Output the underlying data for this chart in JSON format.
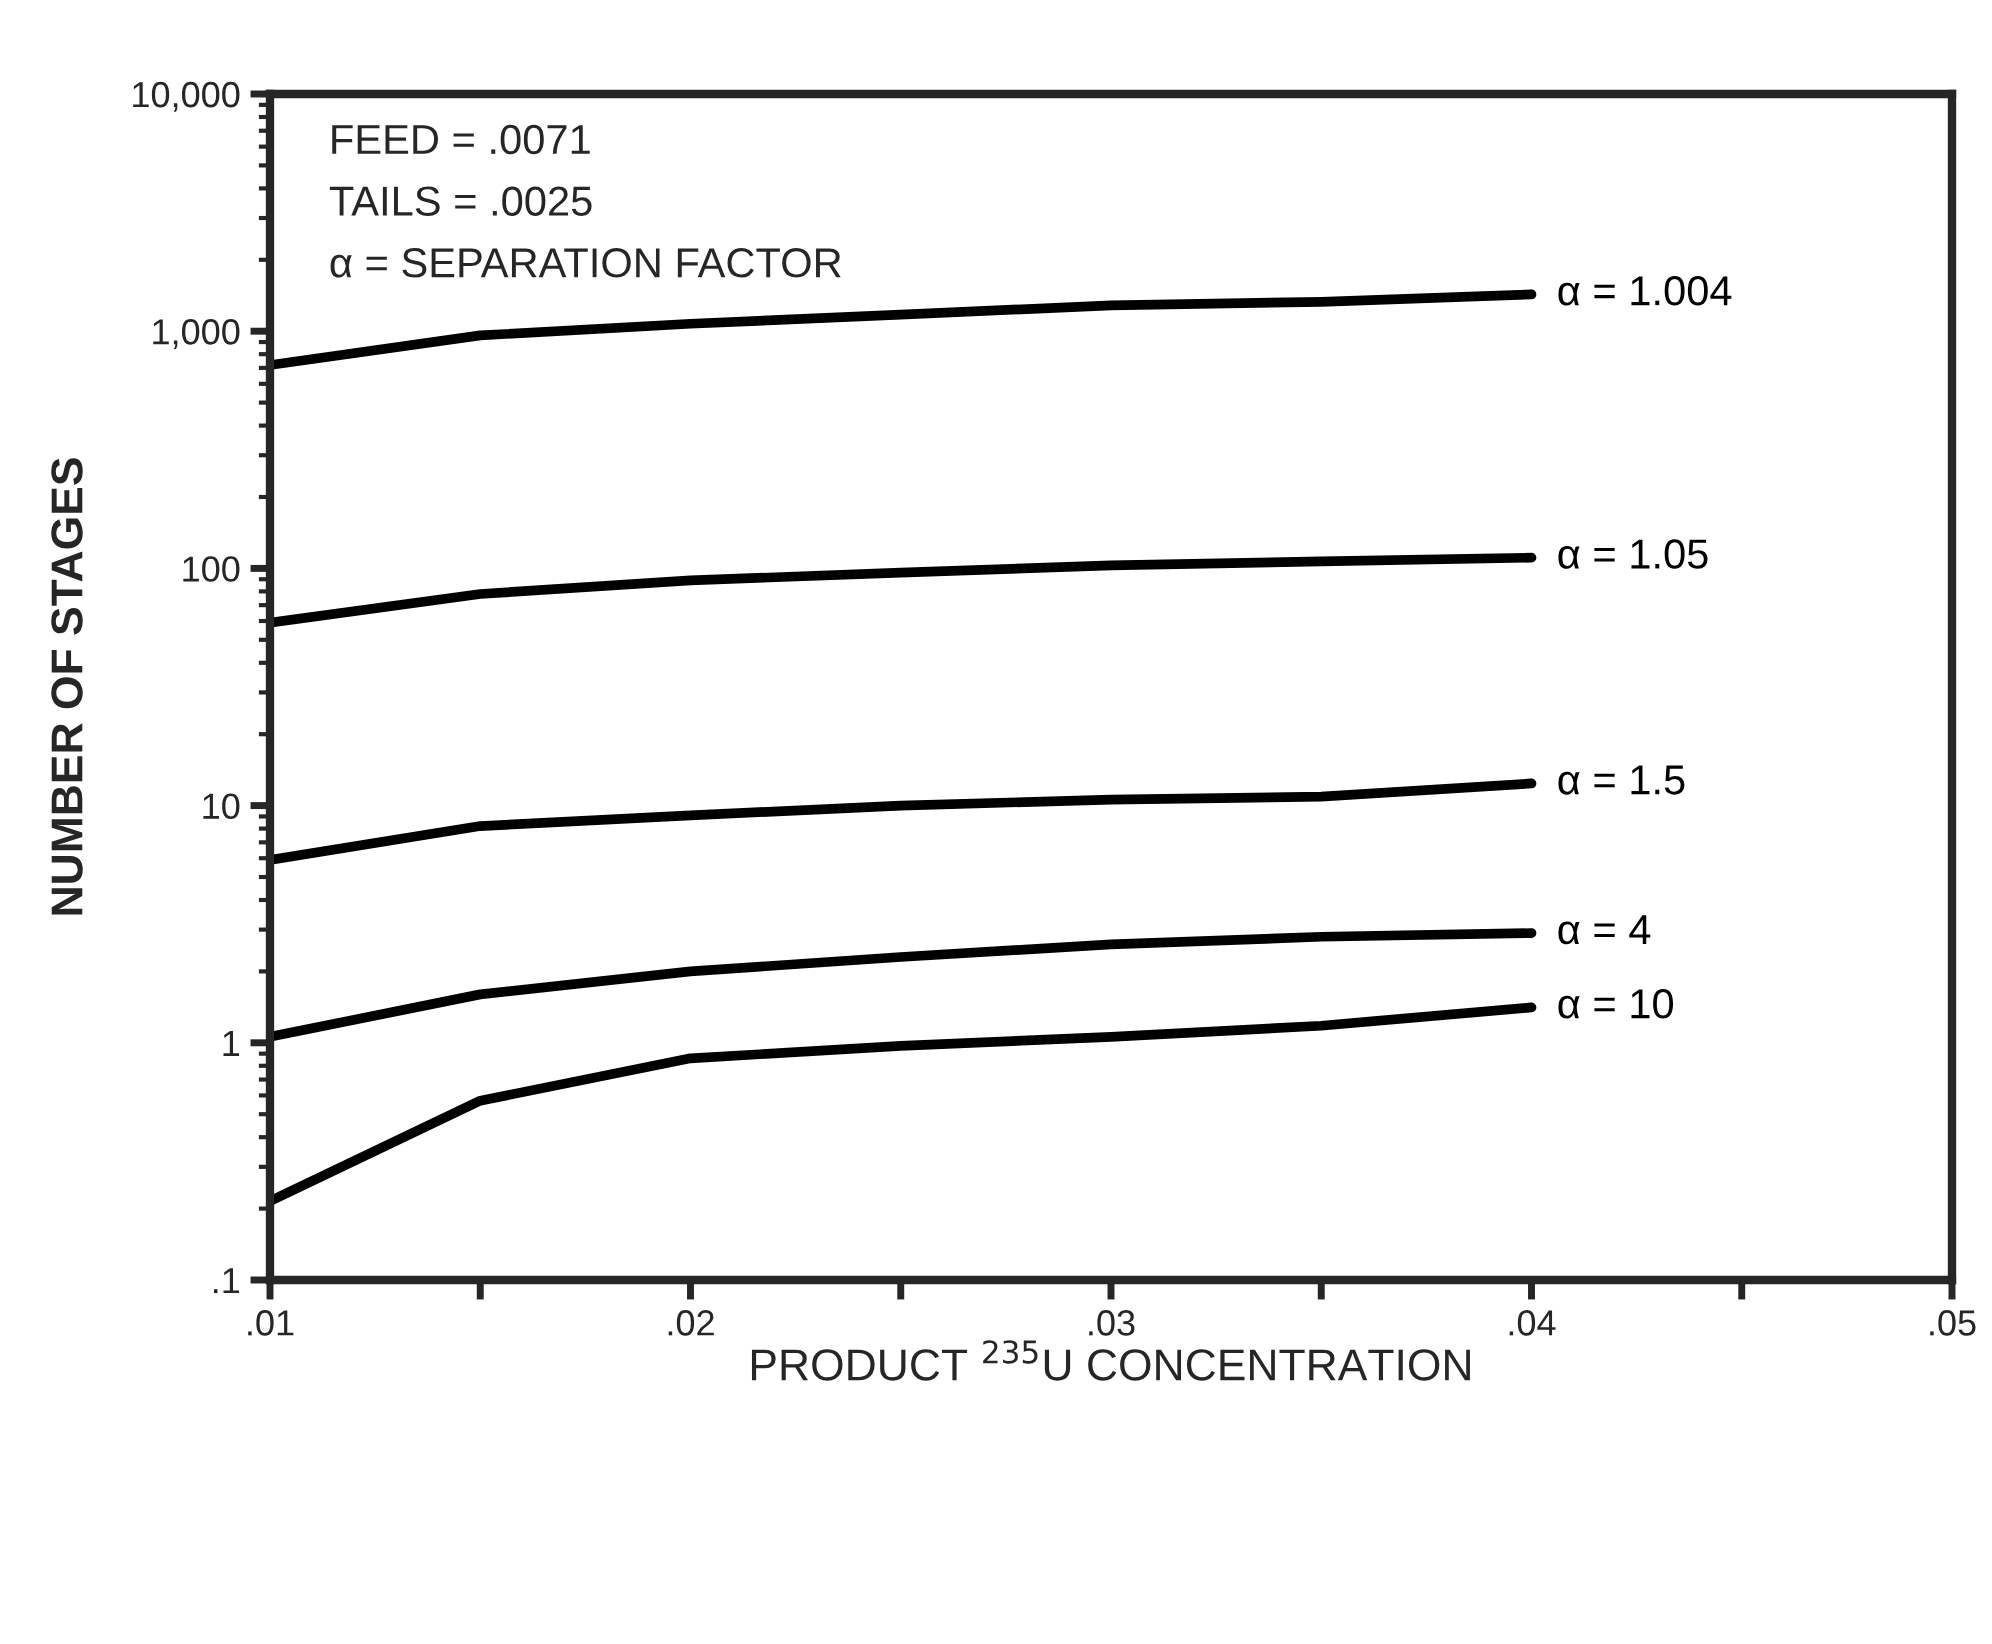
{
  "chart_data": {
    "type": "line",
    "xlabel": "PRODUCT $^{235}$U CONCENTRATION",
    "ylabel": "NUMBER OF STAGES",
    "x": [
      0.01,
      0.015,
      0.02,
      0.025,
      0.03,
      0.035,
      0.04
    ],
    "series": [
      {
        "name": "α = 1.004",
        "color": "#000000",
        "values": [
          720,
          960,
          1075,
          1175,
          1285,
          1330,
          1430
        ]
      },
      {
        "name": "α = 1.05",
        "color": "#000000",
        "values": [
          59,
          78,
          89,
          96,
          103,
          107,
          111
        ]
      },
      {
        "name": "α = 1.5",
        "color": "#000000",
        "values": [
          5.9,
          8.2,
          9.1,
          10,
          10.6,
          10.9,
          12.4
        ]
      },
      {
        "name": "α = 4",
        "color": "#000000",
        "values": [
          1.06,
          1.6,
          2.0,
          2.3,
          2.6,
          2.8,
          2.9
        ]
      },
      {
        "name": "α = 10",
        "color": "#000000",
        "values": [
          0.215,
          0.57,
          0.86,
          0.97,
          1.06,
          1.18,
          1.41
        ]
      }
    ],
    "annotations": [
      "FEED = .0071",
      "TAILS = .0025",
      "α = SEPARATION FACTOR"
    ],
    "log": "y",
    "xlim": [
      0.01,
      0.05
    ],
    "xticks": [
      {
        "value": 0.01,
        "label": ".01"
      },
      {
        "value": 0.015,
        "label": null
      },
      {
        "value": 0.02,
        "label": ".02"
      },
      {
        "value": 0.025,
        "label": null
      },
      {
        "value": 0.03,
        "label": ".03"
      },
      {
        "value": 0.035,
        "label": null
      },
      {
        "value": 0.04,
        "label": ".04"
      },
      {
        "value": 0.045,
        "label": null
      },
      {
        "value": 0.05,
        "label": ".05"
      }
    ],
    "ylim": [
      0.1,
      10000
    ],
    "yticks": [
      {
        "value": 0.1,
        "label": ".1"
      },
      {
        "value": 1,
        "label": "1"
      },
      {
        "value": 10,
        "label": "10"
      },
      {
        "value": 100,
        "label": "100"
      },
      {
        "value": 1000,
        "label": "1,000"
      },
      {
        "value": 10000,
        "label": "10,000"
      }
    ],
    "grid": false,
    "legend": false,
    "marker": "none",
    "line_style": "solid"
  }
}
